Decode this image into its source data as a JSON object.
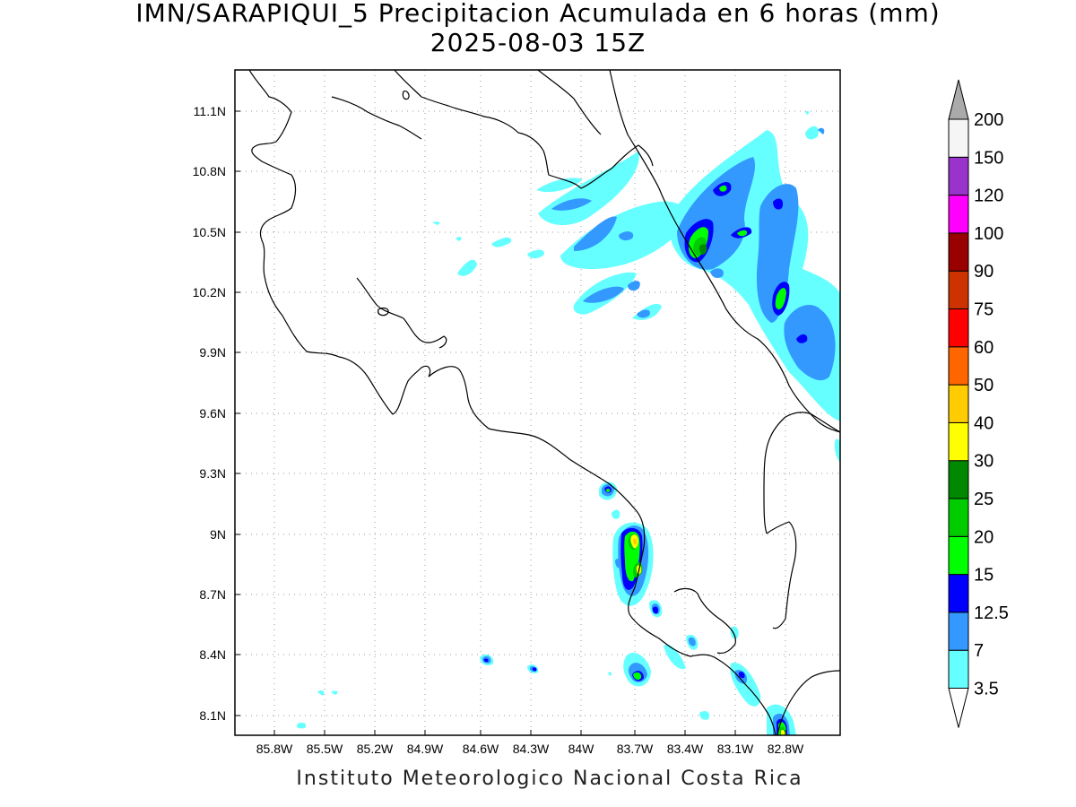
{
  "title": "IMN/SARAPIQUI_5 Precipitacion Acumulada en 6 horas (mm)",
  "subtitle": "2025-08-03 15Z",
  "credit": "Instituto Meteorologico Nacional Costa Rica",
  "x_ticks": [
    "85.8W",
    "85.5W",
    "85.2W",
    "84.9W",
    "84.6W",
    "84.3W",
    "84W",
    "83.7W",
    "83.4W",
    "83.1W",
    "82.8W"
  ],
  "y_ticks": [
    "11.1N",
    "10.8N",
    "10.5N",
    "10.2N",
    "9.9N",
    "9.6N",
    "9.3N",
    "9N",
    "8.7N",
    "8.4N",
    "8.1N"
  ],
  "colorbar": {
    "labels": [
      "3.5",
      "7",
      "12.5",
      "15",
      "20",
      "25",
      "30",
      "40",
      "50",
      "60",
      "75",
      "90",
      "100",
      "120",
      "150",
      "200"
    ],
    "colors": [
      "#66ffff",
      "#3399ff",
      "#0000ff",
      "#00ff00",
      "#00cc00",
      "#008800",
      "#ffff00",
      "#ffcc00",
      "#ff6600",
      "#ff0000",
      "#cc3300",
      "#990000",
      "#ff00ff",
      "#9933cc",
      "#f5f5f5",
      "#aaaaaa"
    ],
    "low_color": "#ffffff",
    "high_color": "#aaaaaa"
  }
}
